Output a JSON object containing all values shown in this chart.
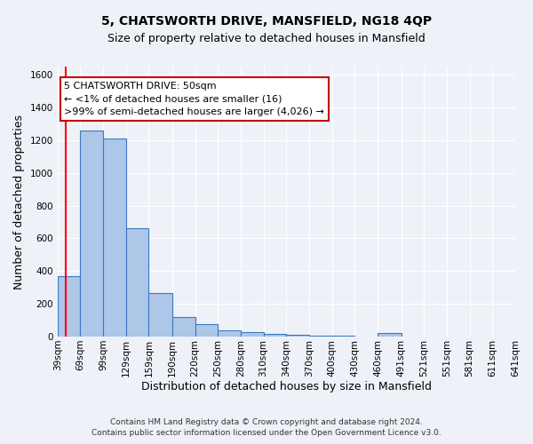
{
  "title": "5, CHATSWORTH DRIVE, MANSFIELD, NG18 4QP",
  "subtitle": "Size of property relative to detached houses in Mansfield",
  "xlabel": "Distribution of detached houses by size in Mansfield",
  "ylabel": "Number of detached properties",
  "footer_line1": "Contains HM Land Registry data © Crown copyright and database right 2024.",
  "footer_line2": "Contains public sector information licensed under the Open Government Licence v3.0.",
  "annotation_title": "5 CHATSWORTH DRIVE: 50sqm",
  "annotation_line2": "← <1% of detached houses are smaller (16)",
  "annotation_line3": ">99% of semi-detached houses are larger (4,026) →",
  "property_size_sqm": 50,
  "bar_left_edges": [
    39,
    69,
    99,
    129,
    159,
    190,
    220,
    250,
    280,
    310,
    340,
    370,
    400,
    430,
    460,
    491,
    521,
    551,
    581,
    611
  ],
  "bar_widths": [
    30,
    30,
    30,
    30,
    31,
    30,
    30,
    30,
    30,
    30,
    30,
    30,
    30,
    30,
    31,
    30,
    30,
    30,
    30,
    30
  ],
  "bar_heights": [
    370,
    1260,
    1210,
    660,
    265,
    120,
    75,
    40,
    25,
    15,
    10,
    5,
    5,
    0,
    20,
    0,
    0,
    0,
    0,
    0
  ],
  "tick_labels": [
    "39sqm",
    "69sqm",
    "99sqm",
    "129sqm",
    "159sqm",
    "190sqm",
    "220sqm",
    "250sqm",
    "280sqm",
    "310sqm",
    "340sqm",
    "370sqm",
    "400sqm",
    "430sqm",
    "460sqm",
    "491sqm",
    "521sqm",
    "551sqm",
    "581sqm",
    "611sqm",
    "641sqm"
  ],
  "bar_color": "#aec6e8",
  "bar_edge_color": "#3a7abf",
  "red_line_x": 50,
  "annotation_box_color": "#ffffff",
  "annotation_box_edge": "#cc0000",
  "annotation_text_color": "#000000",
  "background_color": "#eef2f8",
  "ylim": [
    0,
    1650
  ],
  "yticks": [
    0,
    200,
    400,
    600,
    800,
    1000,
    1200,
    1400,
    1600
  ],
  "title_fontsize": 10,
  "subtitle_fontsize": 9,
  "annotation_fontsize": 8,
  "xlabel_fontsize": 9,
  "ylabel_fontsize": 9,
  "tick_fontsize": 7.5,
  "footer_fontsize": 6.5
}
